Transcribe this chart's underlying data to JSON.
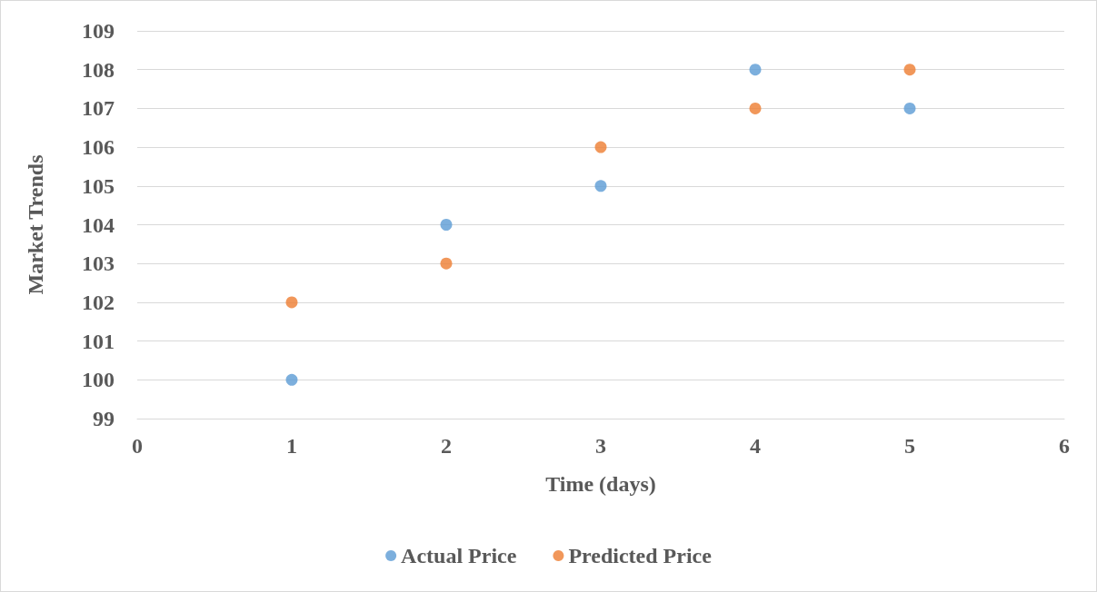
{
  "chart_data": {
    "type": "scatter",
    "xlabel": "Time (days)",
    "ylabel": "Market Trends",
    "x": [
      1,
      2,
      3,
      4,
      5
    ],
    "series": [
      {
        "name": "Actual Price",
        "color": "#5b9bd5",
        "values": [
          100,
          104,
          105,
          108,
          107
        ]
      },
      {
        "name": "Predicted Price",
        "color": "#ed7d31",
        "values": [
          102,
          103,
          106,
          107,
          108
        ]
      }
    ],
    "xlim": [
      0,
      6
    ],
    "xticks": [
      0,
      1,
      2,
      3,
      4,
      5,
      6
    ],
    "ylim": [
      99,
      109
    ],
    "yticks": [
      99,
      100,
      101,
      102,
      103,
      104,
      105,
      106,
      107,
      108,
      109
    ],
    "grid": "y",
    "legend": "bottom",
    "marker": "circle"
  }
}
